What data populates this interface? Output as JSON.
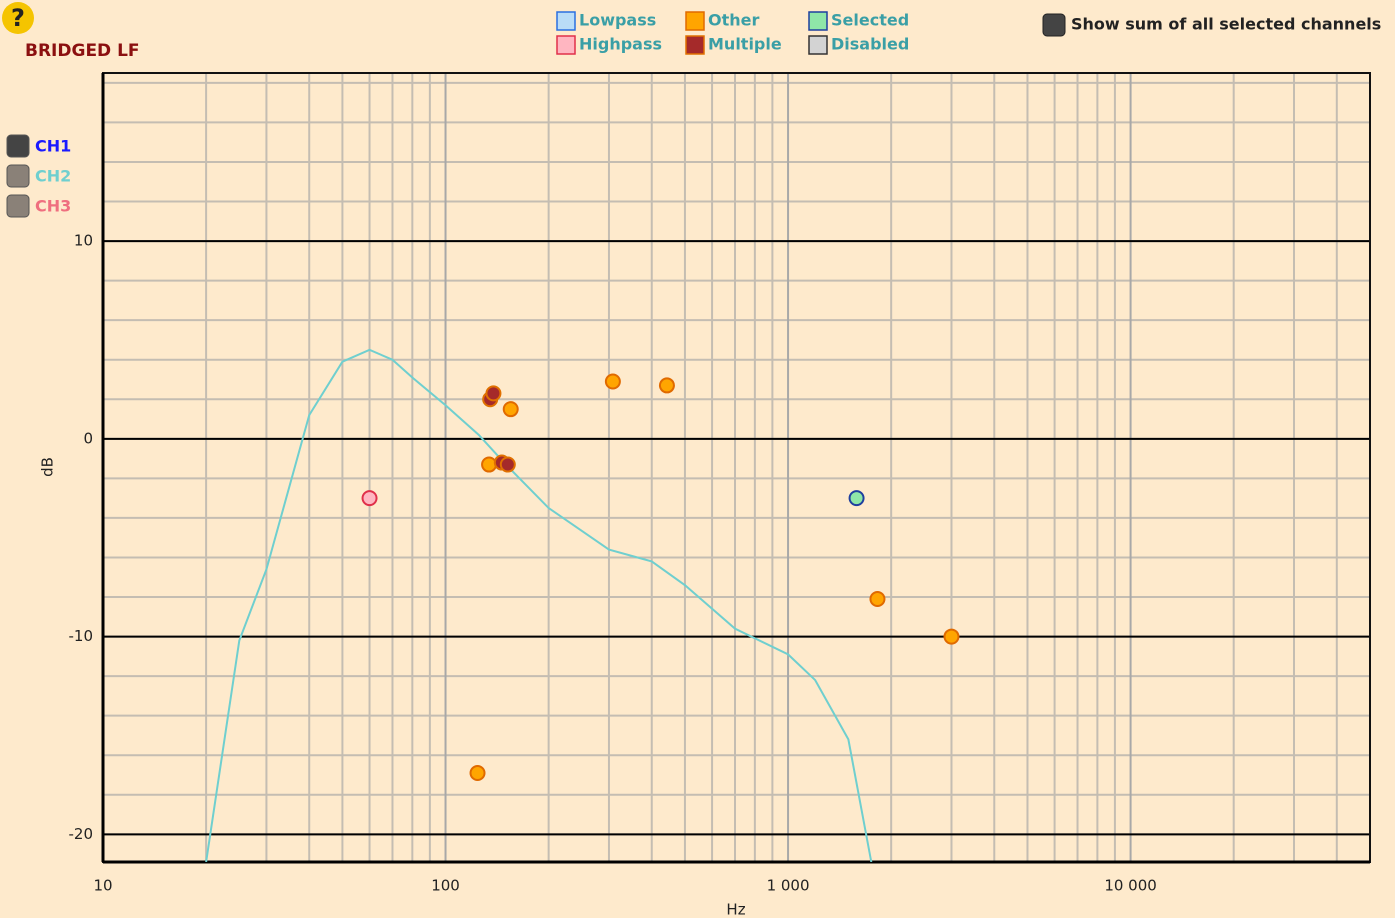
{
  "header": {
    "help": "?",
    "title": "BRIDGED LF",
    "sum_toggle": "Show sum of all selected channels"
  },
  "chart_data": {
    "type": "line",
    "xlabel": "Hz",
    "ylabel": "dB",
    "xscale": "log",
    "xlim": [
      10,
      50000
    ],
    "ylim": [
      -21.4,
      18.5
    ],
    "xticks": [
      10,
      100,
      {
        "value": 1000,
        "label": "1 000"
      },
      {
        "value": 10000,
        "label": "10 000"
      }
    ],
    "yticks": [
      -20,
      -10,
      0,
      10
    ],
    "grid": true,
    "minor_grid": true,
    "series": [
      {
        "name": "CH1",
        "color": "#1a1aff",
        "checked": true,
        "x": [],
        "values": []
      },
      {
        "name": "CH2",
        "color": "#6fcfcf",
        "checked": false,
        "x": [
          20,
          25,
          30,
          40,
          50,
          60,
          70,
          80,
          100,
          125,
          150,
          200,
          300,
          400,
          500,
          700,
          1000,
          1200,
          1500,
          1750
        ],
        "values": [
          -21.4,
          -10.2,
          -6.6,
          1.2,
          3.9,
          4.5,
          4.0,
          3.1,
          1.7,
          0.2,
          -1.3,
          -3.5,
          -5.6,
          -6.2,
          -7.4,
          -9.6,
          -10.9,
          -12.2,
          -15.2,
          -21.4
        ]
      },
      {
        "name": "CH3",
        "color": "#ef6f7f",
        "checked": false,
        "x": [],
        "values": []
      }
    ],
    "markers": [
      {
        "name": "Lowpass",
        "color": "#b9dcf7",
        "edge": "#2a6fe0",
        "x": [],
        "values": []
      },
      {
        "name": "Highpass",
        "color": "#ffb6c1",
        "edge": "#e0304a",
        "x": [
          60
        ],
        "values": [
          -3.0
        ]
      },
      {
        "name": "Other",
        "color": "#ffa500",
        "edge": "#e06a00",
        "x": [
          124,
          134,
          155,
          308,
          443,
          1824,
          3000
        ],
        "values": [
          -16.9,
          -1.3,
          1.5,
          2.9,
          2.7,
          -8.1,
          -10.0
        ]
      },
      {
        "name": "Multiple",
        "color": "#a52a2a",
        "edge": "#e07000",
        "x": [
          135,
          138,
          146,
          152
        ],
        "values": [
          2.0,
          2.3,
          -1.2,
          -1.3
        ]
      },
      {
        "name": "Selected",
        "color": "#8fe6a8",
        "edge": "#1f3f9f",
        "x": [
          1585
        ],
        "values": [
          -3.0
        ]
      },
      {
        "name": "Disabled",
        "color": "#d3d3d3",
        "edge": "#333333",
        "x": [],
        "values": []
      }
    ]
  }
}
